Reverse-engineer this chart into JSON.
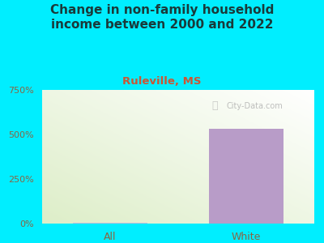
{
  "title": "Change in non-family household\nincome between 2000 and 2022",
  "subtitle": "Ruleville, MS",
  "categories": [
    "All",
    "White"
  ],
  "values": [
    3.5,
    530
  ],
  "bar_colors": [
    "#c8bcd8",
    "#b89cc8"
  ],
  "ylim": [
    0,
    750
  ],
  "yticks": [
    0,
    250,
    500,
    750
  ],
  "ytick_labels": [
    "0%",
    "250%",
    "500%",
    "750%"
  ],
  "background_color": "#00eeff",
  "plot_bg_left": "#ddeec8",
  "plot_bg_right": "#f0f8f0",
  "title_color": "#1a3a3a",
  "subtitle_color": "#cc5533",
  "tick_color": "#886644",
  "title_fontsize": 11,
  "subtitle_fontsize": 9.5,
  "bar_width": 0.55,
  "watermark": "City-Data.com"
}
